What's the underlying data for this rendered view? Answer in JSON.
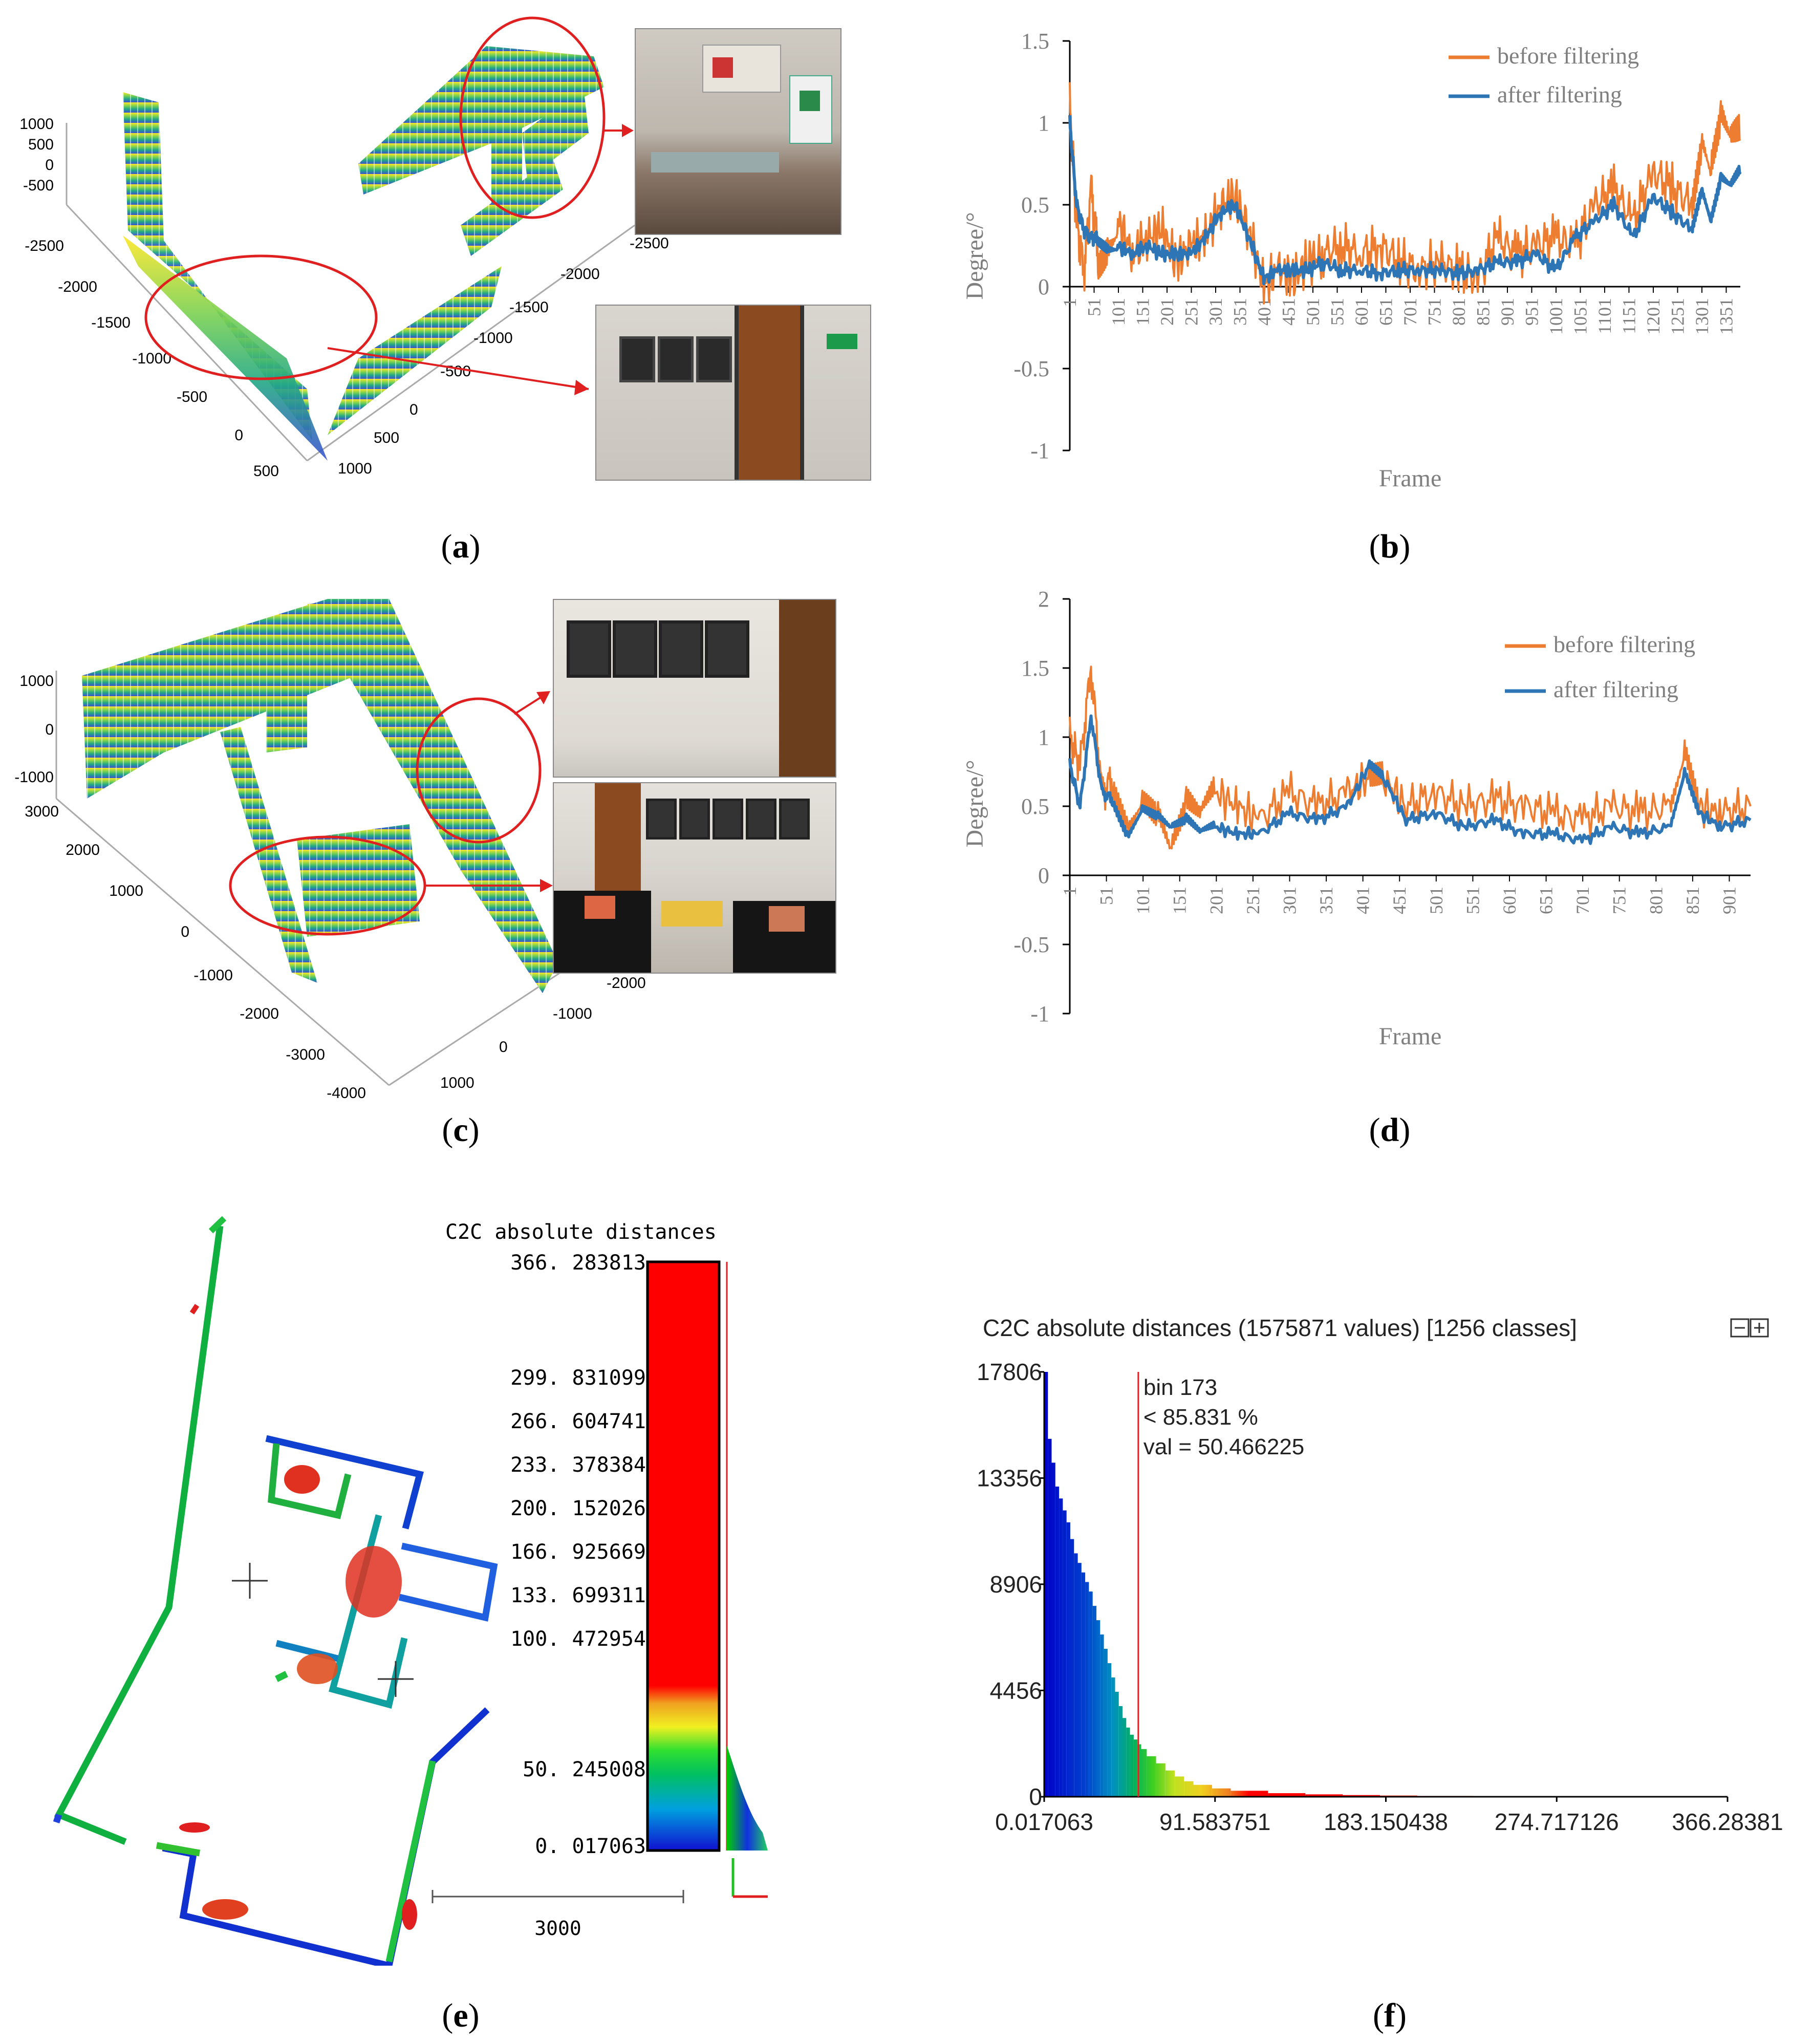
{
  "panels": {
    "a": {
      "label": "a"
    },
    "b": {
      "label": "b"
    },
    "c": {
      "label": "c"
    },
    "d": {
      "label": "d"
    },
    "e": {
      "label": "e"
    },
    "f": {
      "label": "f"
    }
  },
  "pointcloud_a": {
    "z_ticks": [
      "1000",
      "500",
      "0",
      "-500"
    ],
    "y_ticks": [
      "-2500",
      "-2000",
      "-1500",
      "-1000",
      "-500",
      "0",
      "500"
    ],
    "x_ticks": [
      "1000",
      "500",
      "0",
      "-500",
      "-1000",
      "-1500",
      "-2000",
      "-2500"
    ]
  },
  "pointcloud_c": {
    "z_ticks": [
      "1000",
      "0",
      "-1000"
    ],
    "y_ticks": [
      "3000",
      "2000",
      "1000",
      "0",
      "-1000",
      "-2000",
      "-3000",
      "-4000"
    ],
    "x_ticks": [
      "1000",
      "0",
      "-1000",
      "-2000"
    ]
  },
  "chart_data": [
    {
      "id": "b",
      "type": "line",
      "xlabel": "Frame",
      "ylabel": "Degree/°",
      "ylim": [
        -1,
        1.5
      ],
      "y_ticks": [
        "1.5",
        "1",
        "0.5",
        "0",
        "-0.5",
        "-1"
      ],
      "x_ticks": [
        "1",
        "51",
        "101",
        "151",
        "201",
        "251",
        "301",
        "351",
        "401",
        "451",
        "501",
        "551",
        "601",
        "651",
        "701",
        "751",
        "801",
        "851",
        "901",
        "951",
        "1001",
        "1051",
        "1101",
        "1151",
        "1201",
        "1251",
        "1301",
        "1351"
      ],
      "xlim": [
        1,
        1380
      ],
      "grid": false,
      "legend_position": "top-right",
      "series": [
        {
          "name": "before filtering",
          "color": "#ED7D31",
          "x": [
            1,
            15,
            30,
            45,
            60,
            80,
            100,
            130,
            160,
            190,
            220,
            250,
            280,
            310,
            340,
            370,
            400,
            430,
            460,
            490,
            520,
            560,
            600,
            640,
            680,
            720,
            760,
            800,
            840,
            880,
            920,
            960,
            1000,
            1040,
            1080,
            1120,
            1160,
            1200,
            1240,
            1280,
            1300,
            1320,
            1340,
            1360,
            1380
          ],
          "y": [
            1.1,
            0.4,
            0.1,
            0.6,
            0.2,
            0.3,
            0.4,
            0.2,
            0.3,
            0.35,
            0.15,
            0.25,
            0.3,
            0.5,
            0.55,
            0.35,
            0.0,
            0.1,
            0.05,
            0.15,
            0.2,
            0.25,
            0.2,
            0.25,
            0.15,
            0.1,
            0.15,
            0.1,
            0.05,
            0.3,
            0.2,
            0.25,
            0.3,
            0.25,
            0.5,
            0.6,
            0.4,
            0.7,
            0.6,
            0.5,
            0.9,
            0.7,
            1.0,
            0.85,
            0.9
          ]
        },
        {
          "name": "after filtering",
          "color": "#2E75B6",
          "x": [
            1,
            15,
            30,
            45,
            60,
            80,
            100,
            130,
            160,
            190,
            220,
            250,
            280,
            310,
            340,
            370,
            400,
            430,
            460,
            490,
            520,
            560,
            600,
            640,
            680,
            720,
            760,
            800,
            840,
            880,
            920,
            960,
            1000,
            1040,
            1080,
            1120,
            1160,
            1200,
            1240,
            1280,
            1300,
            1320,
            1340,
            1360,
            1380
          ],
          "y": [
            1.0,
            0.5,
            0.35,
            0.3,
            0.3,
            0.25,
            0.25,
            0.2,
            0.25,
            0.2,
            0.2,
            0.2,
            0.3,
            0.45,
            0.5,
            0.3,
            0.05,
            0.1,
            0.1,
            0.1,
            0.15,
            0.1,
            0.1,
            0.08,
            0.1,
            0.1,
            0.1,
            0.08,
            0.1,
            0.15,
            0.15,
            0.2,
            0.1,
            0.3,
            0.4,
            0.5,
            0.3,
            0.55,
            0.45,
            0.35,
            0.6,
            0.4,
            0.65,
            0.6,
            0.7
          ]
        }
      ]
    },
    {
      "id": "d",
      "type": "line",
      "xlabel": "Frame",
      "ylabel": "Degree/°",
      "ylim": [
        -1,
        2
      ],
      "y_ticks": [
        "2",
        "1.5",
        "1",
        "0.5",
        "0",
        "-0.5",
        "-1"
      ],
      "x_ticks": [
        "1",
        "51",
        "101",
        "151",
        "201",
        "251",
        "301",
        "351",
        "401",
        "451",
        "501",
        "551",
        "601",
        "651",
        "701",
        "751",
        "801",
        "851",
        "901"
      ],
      "xlim": [
        1,
        930
      ],
      "grid": false,
      "legend_position": "top-right",
      "series": [
        {
          "name": "before filtering",
          "color": "#ED7D31",
          "x": [
            1,
            15,
            30,
            45,
            60,
            80,
            100,
            120,
            140,
            160,
            180,
            200,
            230,
            260,
            300,
            340,
            380,
            410,
            430,
            460,
            500,
            540,
            580,
            620,
            660,
            700,
            740,
            780,
            820,
            840,
            860,
            890,
            930
          ],
          "y": [
            1.0,
            0.8,
            1.5,
            0.6,
            0.7,
            0.4,
            0.6,
            0.5,
            0.2,
            0.5,
            0.4,
            0.6,
            0.5,
            0.4,
            0.6,
            0.5,
            0.6,
            0.7,
            0.7,
            0.5,
            0.6,
            0.5,
            0.55,
            0.5,
            0.45,
            0.4,
            0.5,
            0.45,
            0.5,
            0.9,
            0.5,
            0.45,
            0.5
          ]
        },
        {
          "name": "after filtering",
          "color": "#2E75B6",
          "x": [
            1,
            15,
            30,
            45,
            60,
            80,
            100,
            120,
            140,
            160,
            180,
            200,
            230,
            260,
            300,
            340,
            380,
            410,
            430,
            460,
            500,
            540,
            580,
            620,
            660,
            700,
            740,
            780,
            820,
            840,
            860,
            890,
            930
          ],
          "y": [
            0.8,
            0.5,
            1.15,
            0.6,
            0.55,
            0.3,
            0.5,
            0.45,
            0.35,
            0.4,
            0.3,
            0.35,
            0.3,
            0.3,
            0.45,
            0.4,
            0.5,
            0.8,
            0.7,
            0.4,
            0.45,
            0.35,
            0.4,
            0.3,
            0.3,
            0.25,
            0.35,
            0.3,
            0.35,
            0.75,
            0.45,
            0.35,
            0.4
          ]
        }
      ]
    },
    {
      "id": "f",
      "type": "bar",
      "title": "C2C absolute distances (1575871 values)  [1256 classes]",
      "y_ticks": [
        "17806",
        "13356",
        "8906",
        "4456",
        "0"
      ],
      "x_ticks": [
        "0.017063",
        "91.583751",
        "183.150438",
        "274.717126",
        "366.28381"
      ],
      "xlim": [
        0.017063,
        366.28381
      ],
      "ylim": [
        0,
        17806
      ],
      "annotation": {
        "line1": "bin 173",
        "line2": "< 85.831 %",
        "line3": "val = 50.466225",
        "x": 50.466225
      },
      "bins_x": [
        0.2,
        2,
        4,
        6,
        8,
        10,
        12,
        14,
        16,
        18,
        20,
        22,
        24,
        26,
        28,
        30,
        32,
        34,
        36,
        38,
        40,
        42,
        44,
        46,
        48,
        50,
        52,
        55,
        60,
        65,
        70,
        75,
        80,
        90,
        100,
        120,
        140,
        160,
        180,
        200,
        230,
        260,
        300
      ],
      "bins_y": [
        17806,
        15000,
        14000,
        13000,
        12500,
        12000,
        11500,
        10800,
        10200,
        9800,
        9400,
        9000,
        8600,
        8000,
        7400,
        6800,
        6200,
        5600,
        5000,
        4400,
        3800,
        3300,
        2900,
        2600,
        2400,
        2200,
        2000,
        1700,
        1400,
        1100,
        850,
        650,
        500,
        350,
        250,
        150,
        100,
        70,
        50,
        35,
        25,
        15,
        10
      ]
    },
    {
      "id": "e",
      "type": "heatmap",
      "title": "C2C absolute distances",
      "scale_ticks": [
        "366. 283813",
        "299. 831099",
        "266. 604741",
        "233. 378384",
        "200. 152026",
        "166. 925669",
        "133. 699311",
        "100. 472954",
        "50. 245008",
        "0. 017063"
      ],
      "scale_bar_label": "3000"
    }
  ]
}
